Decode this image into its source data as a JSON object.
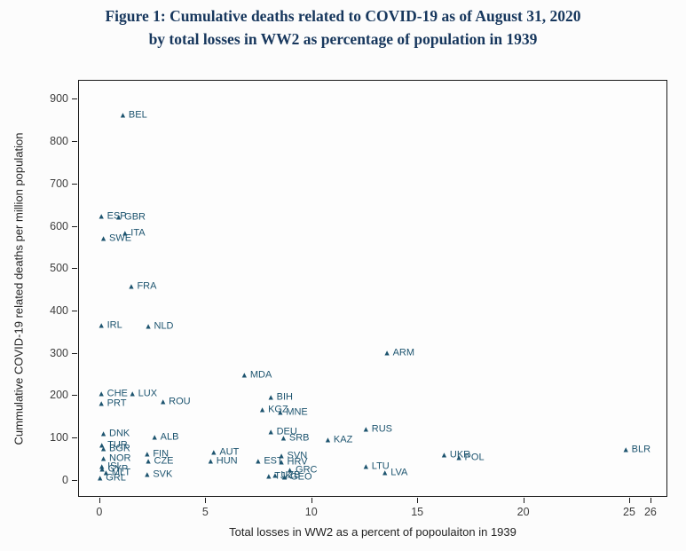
{
  "title": {
    "line1": "Figure 1: Cumulative deaths related to COVID-19 as of August 31, 2020",
    "line2": "by total losses in WW2 as percentage of population in 1939"
  },
  "colors": {
    "title": "#17375d",
    "marker": "#1d546f",
    "axis": "#1a1a1a",
    "tick_label": "#3d3d3d"
  },
  "chart_data": {
    "type": "scatter",
    "title": "Figure 1: Cumulative deaths related to COVID-19 as of August 31, 2020 by total losses in WW2 as percentage of population in 1939",
    "xlabel": "Total losses in WW2 as a percent of popoulaiton in 1939",
    "ylabel": "Cummulative COVID-19 related deaths per million population",
    "marker": "triangle",
    "grid": false,
    "legend": "none",
    "x_ticks": [
      0,
      5,
      10,
      15,
      20,
      25,
      26
    ],
    "y_ticks": [
      0,
      100,
      200,
      300,
      400,
      500,
      600,
      700,
      800,
      900
    ],
    "x_range": [
      -1,
      26.8
    ],
    "y_range": [
      -40,
      945
    ],
    "xlim_data": [
      0,
      26
    ],
    "ylim_data": [
      0,
      900
    ],
    "points": [
      {
        "code": "BEL",
        "x": 1.1,
        "y": 862
      },
      {
        "code": "ESP",
        "x": 0.08,
        "y": 622
      },
      {
        "code": "GBR",
        "x": 0.9,
        "y": 621
      },
      {
        "code": "ITA",
        "x": 1.2,
        "y": 583
      },
      {
        "code": "SWE",
        "x": 0.18,
        "y": 570
      },
      {
        "code": "FRA",
        "x": 1.5,
        "y": 457
      },
      {
        "code": "IRL",
        "x": 0.08,
        "y": 364
      },
      {
        "code": "NLD",
        "x": 2.3,
        "y": 361
      },
      {
        "code": "ARM",
        "x": 13.6,
        "y": 299
      },
      {
        "code": "MDA",
        "x": 6.85,
        "y": 247
      },
      {
        "code": "CHE",
        "x": 0.08,
        "y": 203
      },
      {
        "code": "LUX",
        "x": 1.55,
        "y": 201
      },
      {
        "code": "ROU",
        "x": 3.0,
        "y": 184
      },
      {
        "code": "PRT",
        "x": 0.08,
        "y": 178
      },
      {
        "code": "BIH",
        "x": 8.1,
        "y": 194
      },
      {
        "code": "KGZ",
        "x": 7.7,
        "y": 164
      },
      {
        "code": "MNE",
        "x": 8.55,
        "y": 157
      },
      {
        "code": "DNK",
        "x": 0.18,
        "y": 107
      },
      {
        "code": "ALB",
        "x": 2.6,
        "y": 98
      },
      {
        "code": "DEU",
        "x": 8.1,
        "y": 112
      },
      {
        "code": "SRB",
        "x": 8.7,
        "y": 96
      },
      {
        "code": "KAZ",
        "x": 10.8,
        "y": 93
      },
      {
        "code": "RUS",
        "x": 12.6,
        "y": 117
      },
      {
        "code": "TUR",
        "x": 0.1,
        "y": 79
      },
      {
        "code": "BGR",
        "x": 0.18,
        "y": 71
      },
      {
        "code": "AUT",
        "x": 5.4,
        "y": 64
      },
      {
        "code": "HUN",
        "x": 5.25,
        "y": 43
      },
      {
        "code": "FIN",
        "x": 2.25,
        "y": 58
      },
      {
        "code": "NOR",
        "x": 0.18,
        "y": 49
      },
      {
        "code": "CZE",
        "x": 2.3,
        "y": 42
      },
      {
        "code": "SVN",
        "x": 8.6,
        "y": 54
      },
      {
        "code": "EST",
        "x": 7.5,
        "y": 42
      },
      {
        "code": "HRV",
        "x": 8.6,
        "y": 41
      },
      {
        "code": "GRC",
        "x": 9.0,
        "y": 22
      },
      {
        "code": "SVK",
        "x": 2.25,
        "y": 10
      },
      {
        "code": "ISL",
        "x": 0.1,
        "y": 30
      },
      {
        "code": "CYP",
        "x": 0.12,
        "y": 23
      },
      {
        "code": "MLT",
        "x": 0.3,
        "y": 15
      },
      {
        "code": "GRL",
        "x": 0.02,
        "y": 2
      },
      {
        "code": "TJK",
        "x": 8.0,
        "y": 6
      },
      {
        "code": "UZB",
        "x": 8.3,
        "y": 8
      },
      {
        "code": "GEO",
        "x": 8.75,
        "y": 5
      },
      {
        "code": "LTU",
        "x": 12.6,
        "y": 30
      },
      {
        "code": "LVA",
        "x": 13.5,
        "y": 14
      },
      {
        "code": "UKR",
        "x": 16.3,
        "y": 56
      },
      {
        "code": "POL",
        "x": 17.0,
        "y": 50
      },
      {
        "code": "BLR",
        "x": 24.9,
        "y": 70
      }
    ]
  }
}
